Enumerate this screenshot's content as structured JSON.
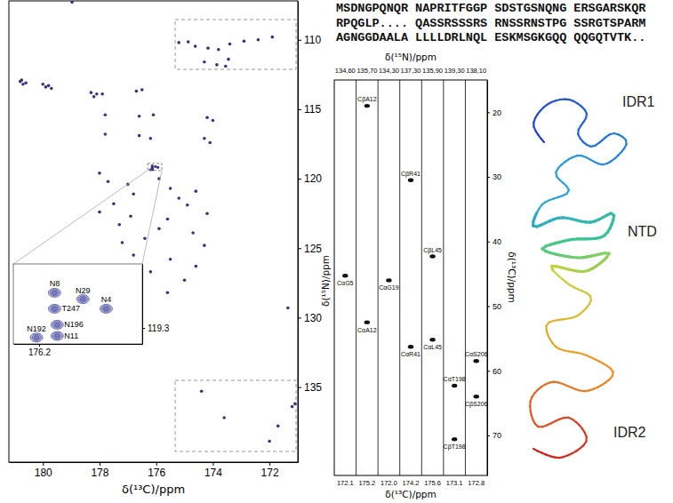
{
  "chart_data": [
    {
      "type": "scatter",
      "x_label": "δ(¹³C)/ppm",
      "x": [
        178.97,
        175.2,
        174.87,
        174.62,
        174.17,
        173.8,
        173.4,
        172.9,
        172.4,
        171.9,
        174.3,
        173.86,
        173.55,
        173.45,
        180.8,
        180.7,
        180.6,
        180.75,
        180.0,
        179.9,
        179.8,
        179.7,
        178.3,
        178.1,
        178.2,
        177.9,
        176.7,
        176.5,
        177.8,
        176.6,
        176.1,
        174.2,
        174.0,
        177.8,
        176.6,
        176.2,
        174.3,
        174.1,
        178.0,
        177.7,
        177.0,
        176.8,
        177.5,
        178.0,
        177.3,
        176.9,
        175.9,
        175.5,
        175.2,
        174.9,
        174.6,
        174.2,
        175.6,
        175.9,
        174.7,
        176.4,
        177.2,
        174.3,
        176.8,
        175.5,
        174.6,
        176.2,
        175.0,
        175.6,
        171.35,
        174.4,
        173.6,
        172.0,
        171.7,
        171.2,
        171.1
      ],
      "values": [
        107.3,
        110.2,
        110.15,
        110.47,
        110.6,
        110.7,
        110.3,
        110.1,
        110.0,
        109.8,
        111.6,
        111.8,
        111.9,
        111.4,
        113.0,
        113.2,
        113.1,
        112.9,
        113.2,
        113.4,
        113.3,
        113.5,
        113.8,
        113.9,
        114.1,
        113.9,
        113.7,
        113.6,
        115.4,
        115.5,
        115.4,
        115.6,
        115.8,
        116.8,
        116.9,
        117.1,
        117.1,
        117.4,
        119.6,
        120.2,
        120.4,
        121.1,
        121.8,
        122.4,
        123.3,
        122.7,
        120.0,
        120.7,
        121.4,
        121.9,
        120.9,
        122.5,
        122.9,
        123.6,
        123.9,
        124.3,
        124.6,
        124.8,
        125.5,
        125.8,
        126.3,
        126.7,
        127.3,
        128.2,
        129.3,
        135.3,
        137.2,
        138.9,
        137.8,
        136.4,
        136.2
      ],
      "xlim": [
        181.2,
        171.0
      ],
      "ylim": [
        107.2,
        140.4
      ],
      "xticks": [
        180,
        178,
        176,
        174,
        172
      ],
      "yticks": [
        110,
        115,
        120,
        125,
        130,
        135
      ],
      "color": "#34357f"
    },
    {
      "type": "scatter",
      "x": [
        176.14,
        176.03,
        175.94,
        176.14,
        176.13,
        176.13,
        176.21
      ],
      "values": [
        119.08,
        119.12,
        119.18,
        119.18,
        119.28,
        119.35,
        119.36
      ],
      "labels": [
        "N8",
        "N29",
        "N4",
        "T247",
        "N196",
        "N11",
        "N192"
      ],
      "xlim": [
        176.3,
        175.8
      ],
      "ylim": [
        118.9,
        119.4
      ],
      "xticks": [
        176.2
      ],
      "yticks": [
        119.3
      ],
      "color": "#3b3d8c"
    },
    {
      "type": "strip",
      "x_label": "δ(¹³C)/ppm",
      "y_label": "δ(¹³C)/ppm",
      "top_label": "δ(¹⁵N)/ppm",
      "left_label": "δ(¹⁵N)/ppm",
      "ylim": [
        15.0,
        76.2
      ],
      "yticks": [
        20,
        30,
        40,
        50,
        60,
        70
      ],
      "color": "#111111",
      "strips": [
        {
          "n": {
            "value": 134.6,
            "label": "134,60"
          },
          "c": 172.1,
          "peaks": [
            {
              "label": "CαG5",
              "value": 45.3
            }
          ]
        },
        {
          "n": {
            "value": 135.7,
            "label": "135,70"
          },
          "c": 175.2,
          "peaks": [
            {
              "label": "CβA12",
              "value": 19.0
            },
            {
              "label": "CαA12",
              "value": 52.5
            }
          ]
        },
        {
          "n": {
            "value": 134.3,
            "label": "134,30"
          },
          "c": {
            "value": 172.0,
            "label": "172.0"
          },
          "peaks": [
            {
              "label": "CαG19",
              "value": 46.0
            }
          ]
        },
        {
          "n": {
            "value": 137.3,
            "label": "137,30"
          },
          "c": 174.2,
          "peaks": [
            {
              "label": "CβR41",
              "value": 30.5
            },
            {
              "label": "CαR41",
              "value": 56.3
            }
          ]
        },
        {
          "n": {
            "value": 135.9,
            "label": "135,90"
          },
          "c": 175.6,
          "peaks": [
            {
              "label": "CβL45",
              "value": 42.3
            },
            {
              "label": "CαL45",
              "value": 55.2
            }
          ]
        },
        {
          "n": {
            "value": 139.3,
            "label": "139,30"
          },
          "c": 173.1,
          "peaks": [
            {
              "label": "CβT198",
              "value": 70.6
            },
            {
              "label": "CαT198",
              "value": 62.3
            }
          ]
        },
        {
          "n": {
            "value": 138.1,
            "label": "138,10"
          },
          "c": 172.8,
          "peaks": [
            {
              "label": "CαS206",
              "value": 58.5
            },
            {
              "label": "CβS206",
              "value": 64.0
            }
          ]
        }
      ]
    }
  ],
  "sequence": {
    "lines": [
      "MSDNGPQNQR NAPRITFGGP SDSTGSNQNG ERSGARSKQR",
      "RPQGLP.... QASSRSSSRS RNSSRNSTPG SSRGTSPARM",
      "AGNGGDAALA LLLLDRLNQL ESKMSGKGQQ QQGQTVTK.."
    ]
  },
  "structure": {
    "labels": [
      "IDR1",
      "NTD",
      "IDR2"
    ]
  }
}
